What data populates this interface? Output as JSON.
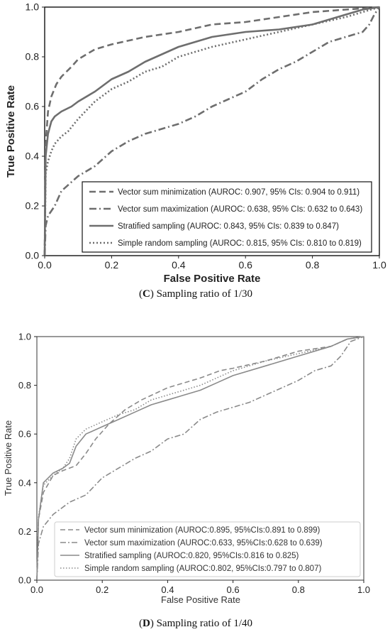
{
  "chart_data": [
    {
      "type": "line",
      "caption_letter": "C",
      "caption_text": "Sampling ratio of 1/30",
      "xlabel": "False Positive Rate",
      "ylabel": "True Positive Rate",
      "xlim": [
        0,
        1
      ],
      "ylim": [
        0,
        1
      ],
      "xticks": [
        "0.0",
        "0.2",
        "0.4",
        "0.6",
        "0.8",
        "1.0"
      ],
      "yticks": [
        "0.0",
        "0.2",
        "0.4",
        "0.6",
        "0.8",
        "1.0"
      ],
      "legend_position": "lower-right",
      "series": [
        {
          "name": "Vector sum minimization (AUROC: 0.907, 95% CIs: 0.904 to 0.911)",
          "style": "dashed",
          "x": [
            0,
            0.003,
            0.01,
            0.02,
            0.035,
            0.05,
            0.08,
            0.1,
            0.15,
            0.2,
            0.3,
            0.4,
            0.5,
            0.6,
            0.7,
            0.8,
            0.9,
            0.95,
            1.0
          ],
          "y": [
            0,
            0.45,
            0.58,
            0.64,
            0.69,
            0.72,
            0.76,
            0.79,
            0.83,
            0.85,
            0.88,
            0.9,
            0.93,
            0.94,
            0.96,
            0.98,
            0.99,
            0.995,
            1.0
          ]
        },
        {
          "name": "Vector sum maximization (AUROC: 0.638, 95% CIs: 0.632 to 0.643)",
          "style": "dashdot",
          "x": [
            0,
            0.003,
            0.01,
            0.03,
            0.05,
            0.1,
            0.15,
            0.2,
            0.25,
            0.3,
            0.35,
            0.4,
            0.45,
            0.5,
            0.55,
            0.6,
            0.65,
            0.7,
            0.75,
            0.8,
            0.85,
            0.9,
            0.95,
            0.97,
            0.985,
            1.0
          ],
          "y": [
            0,
            0.12,
            0.16,
            0.2,
            0.26,
            0.32,
            0.36,
            0.42,
            0.46,
            0.49,
            0.51,
            0.53,
            0.56,
            0.6,
            0.63,
            0.66,
            0.71,
            0.75,
            0.78,
            0.82,
            0.86,
            0.88,
            0.9,
            0.93,
            0.97,
            1.0
          ]
        },
        {
          "name": "Stratified sampling (AUROC: 0.843, 95% CIs: 0.839 to 0.847)",
          "style": "solid",
          "x": [
            0,
            0.003,
            0.01,
            0.02,
            0.03,
            0.05,
            0.08,
            0.1,
            0.15,
            0.2,
            0.25,
            0.3,
            0.35,
            0.4,
            0.5,
            0.6,
            0.7,
            0.8,
            0.85,
            0.9,
            0.95,
            1.0
          ],
          "y": [
            0,
            0.4,
            0.49,
            0.54,
            0.56,
            0.58,
            0.6,
            0.62,
            0.66,
            0.71,
            0.74,
            0.78,
            0.81,
            0.84,
            0.88,
            0.9,
            0.91,
            0.93,
            0.95,
            0.97,
            0.99,
            1.0
          ]
        },
        {
          "name": "Simple random sampling (AUROC: 0.815, 95% CIs: 0.810 to 0.819)",
          "style": "dotted",
          "x": [
            0,
            0.003,
            0.01,
            0.02,
            0.03,
            0.05,
            0.07,
            0.1,
            0.15,
            0.2,
            0.25,
            0.3,
            0.35,
            0.4,
            0.5,
            0.6,
            0.7,
            0.8,
            0.9,
            0.95,
            1.0
          ],
          "y": [
            0,
            0.33,
            0.38,
            0.42,
            0.45,
            0.48,
            0.5,
            0.55,
            0.62,
            0.67,
            0.7,
            0.74,
            0.76,
            0.8,
            0.84,
            0.87,
            0.9,
            0.93,
            0.96,
            0.98,
            1.0
          ]
        }
      ]
    },
    {
      "type": "line",
      "caption_letter": "D",
      "caption_text": "Sampling ratio of 1/40",
      "xlabel": "False Positive Rate",
      "ylabel": "True Positive Rate",
      "xlim": [
        0,
        1
      ],
      "ylim": [
        0,
        1
      ],
      "xticks": [
        "0.0",
        "0.2",
        "0.4",
        "0.6",
        "0.8",
        "1.0"
      ],
      "yticks": [
        "0.0",
        "0.2",
        "0.4",
        "0.6",
        "0.8",
        "1.0"
      ],
      "legend_position": "lower-right",
      "series": [
        {
          "name": "Vector sum minimization (AUROC:0.895, 95%CIs:0.891 to 0.899)",
          "style": "dashed",
          "x": [
            0,
            0.005,
            0.02,
            0.05,
            0.08,
            0.12,
            0.15,
            0.18,
            0.22,
            0.27,
            0.32,
            0.4,
            0.5,
            0.56,
            0.6,
            0.7,
            0.8,
            0.9,
            0.95,
            1.0
          ],
          "y": [
            0,
            0.25,
            0.36,
            0.43,
            0.45,
            0.47,
            0.52,
            0.58,
            0.64,
            0.7,
            0.74,
            0.79,
            0.83,
            0.86,
            0.87,
            0.9,
            0.94,
            0.96,
            0.99,
            1.0
          ]
        },
        {
          "name": "Vector sum maximization (AUROC:0.633, 95%CIs:0.628 to 0.639)",
          "style": "dashdot",
          "x": [
            0,
            0.005,
            0.02,
            0.05,
            0.1,
            0.15,
            0.2,
            0.25,
            0.3,
            0.35,
            0.4,
            0.45,
            0.5,
            0.55,
            0.6,
            0.65,
            0.7,
            0.75,
            0.8,
            0.85,
            0.9,
            0.93,
            0.96,
            1.0
          ],
          "y": [
            0,
            0.15,
            0.22,
            0.27,
            0.32,
            0.35,
            0.42,
            0.46,
            0.5,
            0.53,
            0.58,
            0.6,
            0.66,
            0.69,
            0.71,
            0.73,
            0.76,
            0.79,
            0.82,
            0.86,
            0.88,
            0.92,
            0.98,
            1.0
          ]
        },
        {
          "name": "Stratified sampling (AUROC:0.820, 95%CIs:0.816 to 0.825)",
          "style": "solid",
          "x": [
            0,
            0.005,
            0.02,
            0.05,
            0.08,
            0.1,
            0.12,
            0.15,
            0.2,
            0.25,
            0.3,
            0.35,
            0.4,
            0.5,
            0.55,
            0.6,
            0.7,
            0.8,
            0.9,
            0.95,
            1.0
          ],
          "y": [
            0,
            0.25,
            0.4,
            0.44,
            0.46,
            0.48,
            0.55,
            0.6,
            0.63,
            0.66,
            0.69,
            0.72,
            0.74,
            0.78,
            0.81,
            0.84,
            0.88,
            0.92,
            0.96,
            0.99,
            1.0
          ]
        },
        {
          "name": "Simple random sampling (AUROC:0.802, 95%CIs:0.797 to 0.807)",
          "style": "dotted",
          "x": [
            0,
            0.005,
            0.02,
            0.05,
            0.08,
            0.1,
            0.12,
            0.15,
            0.2,
            0.25,
            0.3,
            0.35,
            0.4,
            0.5,
            0.6,
            0.7,
            0.8,
            0.9,
            0.95,
            1.0
          ],
          "y": [
            0,
            0.26,
            0.39,
            0.43,
            0.46,
            0.5,
            0.58,
            0.62,
            0.65,
            0.68,
            0.7,
            0.74,
            0.76,
            0.8,
            0.86,
            0.9,
            0.93,
            0.96,
            0.99,
            1.0
          ]
        }
      ]
    }
  ]
}
